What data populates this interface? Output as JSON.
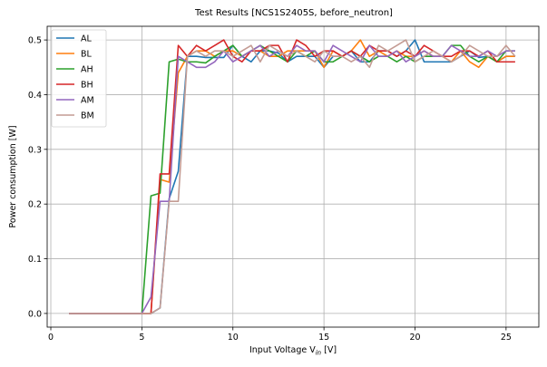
{
  "chart_data": {
    "type": "line",
    "title": "Test Results [NCS1S2405S, before_neutron]",
    "xlabel_prefix": "Input Voltage V",
    "xlabel_sub": "in",
    "xlabel_suffix": " [V]",
    "ylabel": "Power consumption [W]",
    "xlim": [
      -0.2,
      26.8
    ],
    "ylim": [
      -0.025,
      0.525
    ],
    "xticks": [
      0,
      5,
      10,
      15,
      20,
      25
    ],
    "yticks": [
      0.0,
      0.1,
      0.2,
      0.3,
      0.4,
      0.5
    ],
    "xtick_labels": [
      "0",
      "5",
      "10",
      "15",
      "20",
      "25"
    ],
    "ytick_labels": [
      "0.0",
      "0.1",
      "0.2",
      "0.3",
      "0.4",
      "0.5"
    ],
    "grid": true,
    "legend_position": "top-left",
    "series": [
      {
        "name": "AL",
        "color": "#1f77b4",
        "x": [
          1,
          2,
          3,
          4,
          5,
          5.5,
          6,
          6.5,
          7,
          7.5,
          8,
          8.5,
          9,
          9.5,
          10,
          10.5,
          11,
          11.5,
          12,
          12.5,
          13,
          13.5,
          14,
          14.5,
          15,
          15.5,
          16,
          16.5,
          17,
          17.5,
          18,
          18.5,
          19,
          19.5,
          20,
          20.5,
          21,
          21.5,
          22,
          22.5,
          23,
          23.5,
          24,
          24.5,
          25,
          25.5
        ],
        "y": [
          0,
          0,
          0,
          0,
          0,
          0,
          0.01,
          0.21,
          0.26,
          0.47,
          0.47,
          0.468,
          0.468,
          0.468,
          0.49,
          0.47,
          0.46,
          0.48,
          0.48,
          0.476,
          0.46,
          0.47,
          0.47,
          0.47,
          0.45,
          0.47,
          0.47,
          0.48,
          0.46,
          0.46,
          0.48,
          0.48,
          0.47,
          0.48,
          0.5,
          0.46,
          0.46,
          0.46,
          0.46,
          0.47,
          0.48,
          0.468,
          0.47,
          0.46,
          0.47,
          0.47
        ]
      },
      {
        "name": "BL",
        "color": "#ff7f0e",
        "x": [
          1,
          2,
          3,
          4,
          5,
          5.5,
          6,
          6.5,
          7,
          7.5,
          8,
          8.5,
          9,
          9.5,
          10,
          10.5,
          11,
          11.5,
          12,
          12.5,
          13,
          13.5,
          14,
          14.5,
          15,
          15.5,
          16,
          16.5,
          17,
          17.5,
          18,
          18.5,
          19,
          19.5,
          20,
          20.5,
          21,
          21.5,
          22,
          22.5,
          23,
          23.5,
          24,
          24.5,
          25,
          25.5
        ],
        "y": [
          0,
          0,
          0,
          0,
          0,
          0,
          0.245,
          0.24,
          0.44,
          0.47,
          0.48,
          0.48,
          0.47,
          0.48,
          0.48,
          0.47,
          0.48,
          0.48,
          0.47,
          0.47,
          0.48,
          0.48,
          0.48,
          0.48,
          0.45,
          0.48,
          0.47,
          0.48,
          0.5,
          0.47,
          0.48,
          0.47,
          0.48,
          0.47,
          0.47,
          0.48,
          0.47,
          0.47,
          0.46,
          0.48,
          0.46,
          0.45,
          0.47,
          0.46,
          0.47,
          0.47
        ]
      },
      {
        "name": "AH",
        "color": "#2ca02c",
        "x": [
          1,
          2,
          3,
          4,
          5,
          5.5,
          6,
          6.5,
          7,
          7.5,
          8,
          8.5,
          9,
          9.5,
          10,
          10.5,
          11,
          11.5,
          12,
          12.5,
          13,
          13.5,
          14,
          14.5,
          15,
          15.5,
          16,
          16.5,
          17,
          17.5,
          18,
          18.5,
          19,
          19.5,
          20,
          20.5,
          21,
          21.5,
          22,
          22.5,
          23,
          23.5,
          24,
          24.5,
          25,
          25.5
        ],
        "y": [
          0,
          0,
          0,
          0,
          0,
          0.215,
          0.22,
          0.46,
          0.465,
          0.46,
          0.46,
          0.458,
          0.47,
          0.48,
          0.49,
          0.47,
          0.48,
          0.49,
          0.48,
          0.47,
          0.46,
          0.48,
          0.47,
          0.48,
          0.46,
          0.46,
          0.47,
          0.48,
          0.47,
          0.46,
          0.47,
          0.47,
          0.46,
          0.47,
          0.46,
          0.47,
          0.47,
          0.47,
          0.49,
          0.49,
          0.47,
          0.46,
          0.47,
          0.46,
          0.48,
          0.48
        ]
      },
      {
        "name": "BH",
        "color": "#d62728",
        "x": [
          1,
          2,
          3,
          4,
          5,
          5.5,
          6,
          6.5,
          7,
          7.5,
          8,
          8.5,
          9,
          9.5,
          10,
          10.5,
          11,
          11.5,
          12,
          12.5,
          13,
          13.5,
          14,
          14.5,
          15,
          15.5,
          16,
          16.5,
          17,
          17.5,
          18,
          18.5,
          19,
          19.5,
          20,
          20.5,
          21,
          21.5,
          22,
          22.5,
          23,
          23.5,
          24,
          24.5,
          25,
          25.5
        ],
        "y": [
          0,
          0,
          0,
          0,
          0,
          0,
          0.255,
          0.255,
          0.49,
          0.47,
          0.49,
          0.48,
          0.49,
          0.5,
          0.47,
          0.46,
          0.48,
          0.48,
          0.49,
          0.49,
          0.46,
          0.5,
          0.49,
          0.47,
          0.48,
          0.48,
          0.47,
          0.48,
          0.47,
          0.49,
          0.48,
          0.48,
          0.47,
          0.48,
          0.47,
          0.49,
          0.48,
          0.47,
          0.47,
          0.48,
          0.48,
          0.47,
          0.48,
          0.46,
          0.46,
          0.46
        ]
      },
      {
        "name": "AM",
        "color": "#9467bd",
        "x": [
          1,
          2,
          3,
          4,
          5,
          5.5,
          6,
          6.5,
          7,
          7.5,
          8,
          8.5,
          9,
          9.5,
          10,
          10.5,
          11,
          11.5,
          12,
          12.5,
          13,
          13.5,
          14,
          14.5,
          15,
          15.5,
          16,
          16.5,
          17,
          17.5,
          18,
          18.5,
          19,
          19.5,
          20,
          20.5,
          21,
          21.5,
          22,
          22.5,
          23,
          23.5,
          24,
          24.5,
          25,
          25.5
        ],
        "y": [
          0,
          0,
          0,
          0,
          0,
          0.03,
          0.205,
          0.205,
          0.47,
          0.46,
          0.45,
          0.45,
          0.46,
          0.48,
          0.46,
          0.47,
          0.48,
          0.49,
          0.47,
          0.48,
          0.47,
          0.49,
          0.48,
          0.48,
          0.46,
          0.49,
          0.48,
          0.47,
          0.46,
          0.49,
          0.47,
          0.47,
          0.48,
          0.46,
          0.47,
          0.48,
          0.47,
          0.47,
          0.49,
          0.48,
          0.47,
          0.47,
          0.48,
          0.47,
          0.48,
          0.48
        ]
      },
      {
        "name": "BM",
        "color": "#c49c94",
        "x": [
          1,
          2,
          3,
          4,
          5,
          5.5,
          6,
          6.5,
          7,
          7.5,
          8,
          8.5,
          9,
          9.5,
          10,
          10.5,
          11,
          11.5,
          12,
          12.5,
          13,
          13.5,
          14,
          14.5,
          15,
          15.5,
          16,
          16.5,
          17,
          17.5,
          18,
          18.5,
          19,
          19.5,
          20,
          20.5,
          21,
          21.5,
          22,
          22.5,
          23,
          23.5,
          24,
          24.5,
          25,
          25.5
        ],
        "y": [
          0,
          0,
          0,
          0,
          0,
          0,
          0.01,
          0.205,
          0.205,
          0.47,
          0.48,
          0.47,
          0.48,
          0.48,
          0.47,
          0.48,
          0.49,
          0.46,
          0.49,
          0.48,
          0.47,
          0.48,
          0.47,
          0.46,
          0.48,
          0.47,
          0.47,
          0.46,
          0.47,
          0.45,
          0.49,
          0.48,
          0.49,
          0.5,
          0.46,
          0.47,
          0.48,
          0.47,
          0.46,
          0.47,
          0.49,
          0.48,
          0.47,
          0.47,
          0.49,
          0.47
        ]
      }
    ]
  }
}
